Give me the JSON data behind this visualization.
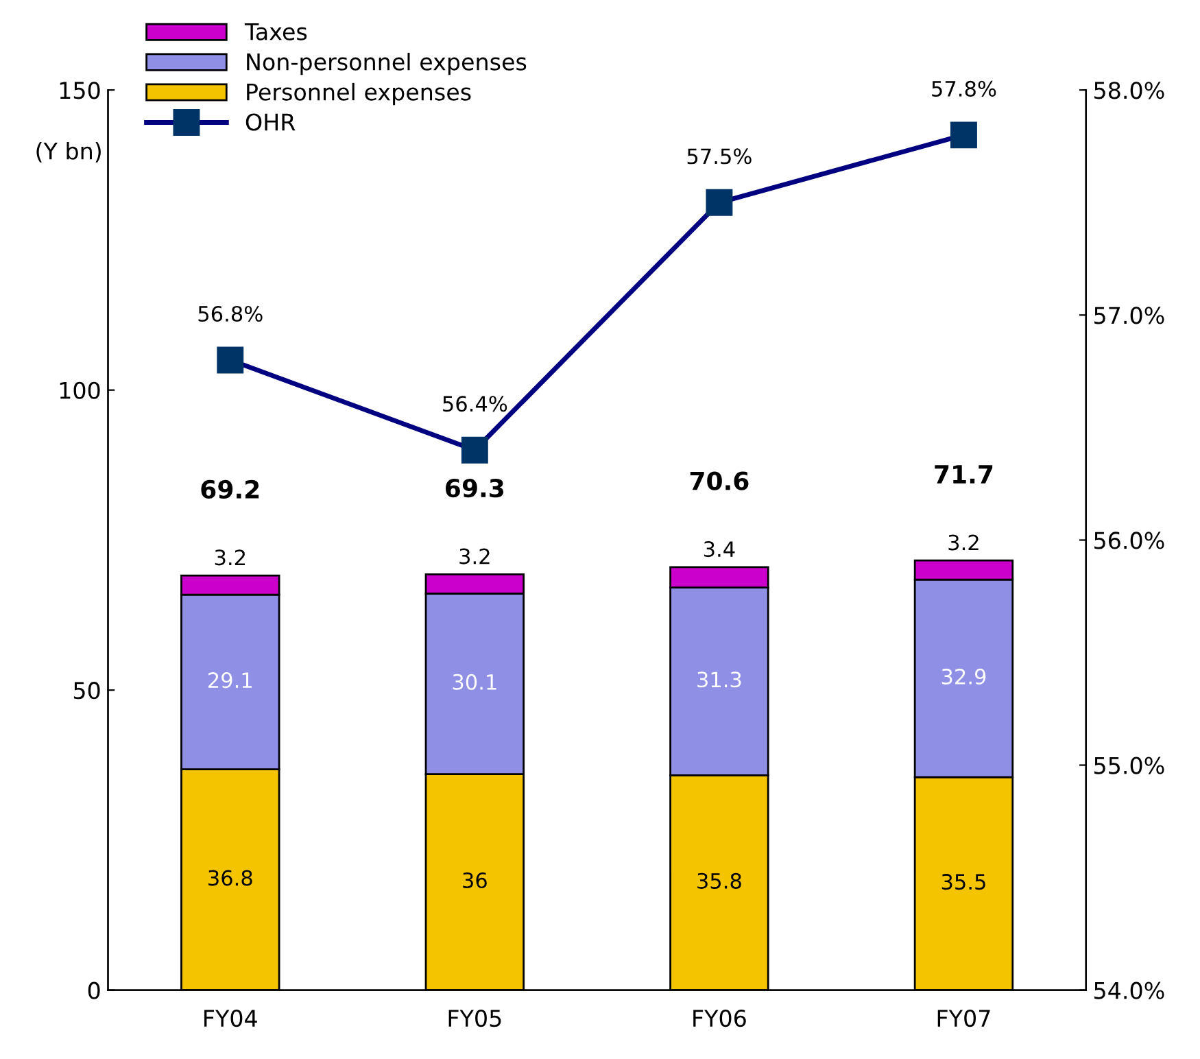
{
  "chart_data": {
    "type": "bar",
    "stacked": true,
    "ylabel": "(Y bn)",
    "categories": [
      "FY04",
      "FY05",
      "FY06",
      "FY07"
    ],
    "series": [
      {
        "name": "Personnel expenses",
        "color": "#f5c400",
        "values": [
          36.8,
          36,
          35.8,
          35.5
        ]
      },
      {
        "name": "Non-personnel expenses",
        "color": "#8f8fe6",
        "values": [
          29.1,
          30.1,
          31.3,
          32.9
        ]
      },
      {
        "name": "Taxes",
        "color": "#cc00cc",
        "values": [
          3.2,
          3.2,
          3.4,
          3.2
        ]
      },
      {
        "name": "OHR",
        "type": "line",
        "axis": "y2",
        "color": "#000080",
        "marker": "square",
        "values": [
          56.8,
          56.4,
          57.5,
          57.8
        ],
        "value_labels": [
          "56.8%",
          "56.4%",
          "57.5%",
          "57.8%"
        ]
      }
    ],
    "data_labels": true,
    "totals": [
      "69.2",
      "69.3",
      "70.6",
      "71.7"
    ],
    "ylim": [
      0,
      150
    ],
    "yticks": [
      0,
      50,
      100,
      150
    ],
    "y2lim": [
      54,
      58
    ],
    "y2ticks": [
      {
        "value": 54,
        "label": "54.0%"
      },
      {
        "value": 55,
        "label": "55.0%"
      },
      {
        "value": 56,
        "label": "56.0%"
      },
      {
        "value": 57,
        "label": "57.0%"
      },
      {
        "value": 58,
        "label": "58.0%"
      }
    ],
    "legend": "top left",
    "grid": false
  }
}
